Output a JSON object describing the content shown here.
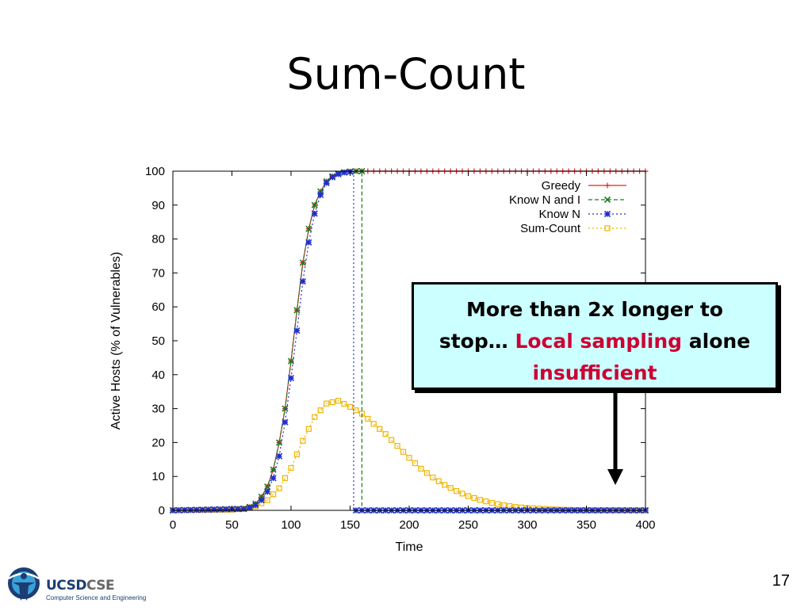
{
  "slide": {
    "title": "Sum-Count",
    "page_number": "17",
    "logo": {
      "name_part1": "UCSD",
      "name_part2": "CSE",
      "subtitle": "Computer Science and Engineering",
      "icon": "ucsd-sun-figure-icon"
    }
  },
  "callout": {
    "line1": "More than 2x longer to",
    "line2_plain": "stop…",
    "line2_highlight": "Local sampling",
    "line2_end": "alone",
    "line3_highlight": "insufficient",
    "fill_color": "#ccffff",
    "highlight_color": "#cc0033",
    "arrow": "down-arrow-icon"
  },
  "chart_data": {
    "type": "line",
    "title": "",
    "xlabel": "Time",
    "ylabel": "Active Hosts (% of Vulnerables)",
    "xlim": [
      0,
      400
    ],
    "ylim": [
      0,
      100
    ],
    "xticks": [
      0,
      50,
      100,
      150,
      200,
      250,
      300,
      350,
      400
    ],
    "yticks": [
      0,
      10,
      20,
      30,
      40,
      50,
      60,
      70,
      80,
      90,
      100
    ],
    "grid": false,
    "legend_position": "top-right",
    "marker_step": 5,
    "series": [
      {
        "name": "Greedy",
        "color": "#e8202a",
        "dash": "solid",
        "marker": "plus",
        "x": [
          0,
          60,
          65,
          70,
          75,
          80,
          85,
          90,
          95,
          100,
          105,
          110,
          115,
          120,
          125,
          130,
          135,
          140,
          145,
          150,
          155,
          160,
          400
        ],
        "y": [
          0,
          0.5,
          1,
          2,
          4,
          7,
          12,
          20,
          30,
          44,
          59,
          73,
          83,
          90,
          94,
          97,
          98.5,
          99.3,
          99.7,
          99.9,
          100,
          100,
          100
        ]
      },
      {
        "name": "Know N and I",
        "color": "#1a7a1a",
        "dash": "dashed",
        "marker": "x",
        "x": [
          0,
          60,
          65,
          70,
          75,
          80,
          85,
          90,
          95,
          100,
          105,
          110,
          115,
          120,
          125,
          130,
          135,
          140,
          145,
          150,
          155,
          160,
          160,
          400
        ],
        "y": [
          0,
          0.5,
          1,
          2,
          4,
          7,
          12,
          20,
          30,
          44,
          59,
          73,
          83,
          90,
          94,
          97,
          98.5,
          99.3,
          99.7,
          99.9,
          100,
          100,
          0,
          0
        ]
      },
      {
        "name": "Know N",
        "color": "#1f2fd0",
        "dash": "dotted",
        "marker": "star",
        "x": [
          0,
          60,
          65,
          70,
          75,
          80,
          85,
          90,
          95,
          100,
          105,
          110,
          115,
          120,
          125,
          130,
          135,
          140,
          145,
          150,
          153,
          153,
          400
        ],
        "y": [
          0,
          0.4,
          0.8,
          1.5,
          3,
          5.5,
          9.5,
          16,
          26,
          39,
          53,
          67.5,
          79,
          87.5,
          93,
          96.5,
          98.2,
          99.1,
          99.6,
          99.8,
          100,
          0,
          0
        ]
      },
      {
        "name": "Sum-Count",
        "color": "#f0b400",
        "dash": "dotted",
        "marker": "square",
        "x": [
          0,
          50,
          60,
          70,
          80,
          90,
          100,
          110,
          120,
          130,
          140,
          150,
          160,
          170,
          180,
          190,
          200,
          210,
          220,
          230,
          240,
          250,
          260,
          270,
          280,
          290,
          300,
          320,
          340,
          360,
          380,
          400
        ],
        "y": [
          0,
          0.2,
          0.5,
          1.2,
          3,
          6.5,
          12.5,
          20.5,
          27.5,
          31.5,
          32.3,
          30.5,
          28.5,
          25.5,
          22.5,
          19,
          15.5,
          12.3,
          9.7,
          7.5,
          5.7,
          4.2,
          3.1,
          2.2,
          1.5,
          1.0,
          0.7,
          0.3,
          0.1,
          0.05,
          0.02,
          0
        ]
      }
    ]
  }
}
